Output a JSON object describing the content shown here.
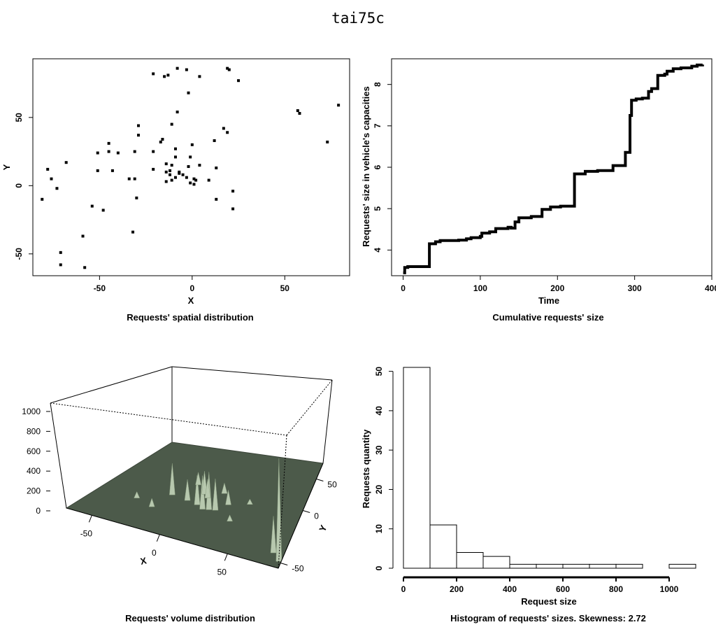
{
  "page_title": "tai75c",
  "chart_data": [
    {
      "type": "scatter",
      "caption": "Requests' spatial distribution",
      "xlabel": "X",
      "ylabel": "Y",
      "xlim": [
        -86,
        85
      ],
      "ylim": [
        -66,
        93
      ],
      "xticks": [
        -50,
        0,
        50
      ],
      "yticks": [
        -50,
        0,
        50
      ],
      "points": [
        [
          -21,
          82
        ],
        [
          -15,
          80
        ],
        [
          -13,
          81
        ],
        [
          -8,
          86
        ],
        [
          -3,
          85
        ],
        [
          4,
          80
        ],
        [
          19,
          86
        ],
        [
          20,
          85
        ],
        [
          25,
          77
        ],
        [
          -2,
          68
        ],
        [
          -8,
          54
        ],
        [
          57,
          55
        ],
        [
          58,
          53
        ],
        [
          79,
          59
        ],
        [
          73,
          32
        ],
        [
          -29,
          44
        ],
        [
          -11,
          45
        ],
        [
          -29,
          37
        ],
        [
          -16,
          34
        ],
        [
          -17,
          32
        ],
        [
          17,
          42
        ],
        [
          19,
          39
        ],
        [
          12,
          33
        ],
        [
          -45,
          31
        ],
        [
          -31,
          25
        ],
        [
          -21,
          25
        ],
        [
          -45,
          25
        ],
        [
          -51,
          24
        ],
        [
          -40,
          24
        ],
        [
          -9,
          27
        ],
        [
          0,
          30
        ],
        [
          -68,
          17
        ],
        [
          -78,
          12
        ],
        [
          -51,
          11
        ],
        [
          -43,
          11
        ],
        [
          -21,
          12
        ],
        [
          -14,
          16
        ],
        [
          -11,
          15
        ],
        [
          -12,
          11
        ],
        [
          -14,
          10
        ],
        [
          -9,
          21
        ],
        [
          -1,
          21
        ],
        [
          4,
          15
        ],
        [
          13,
          13
        ],
        [
          -12,
          8
        ],
        [
          -9,
          6
        ],
        [
          -7,
          9
        ],
        [
          -5,
          8
        ],
        [
          -3,
          6
        ],
        [
          -2,
          14
        ],
        [
          -7,
          10
        ],
        [
          -76,
          5
        ],
        [
          -34,
          5
        ],
        [
          -31,
          5
        ],
        [
          -14,
          3
        ],
        [
          -11,
          4
        ],
        [
          -1,
          2
        ],
        [
          1,
          1
        ],
        [
          2,
          4
        ],
        [
          1,
          5
        ],
        [
          9,
          4
        ],
        [
          22,
          -4
        ],
        [
          -73,
          -2
        ],
        [
          -81,
          -10
        ],
        [
          -30,
          -9
        ],
        [
          13,
          -10
        ],
        [
          -54,
          -15
        ],
        [
          -48,
          -18
        ],
        [
          22,
          -17
        ],
        [
          -59,
          -37
        ],
        [
          -32,
          -34
        ],
        [
          -71,
          -49
        ],
        [
          -71,
          -58
        ],
        [
          -58,
          -60
        ]
      ]
    },
    {
      "type": "line",
      "caption": "Cumulative requests' size",
      "xlabel": "Time",
      "ylabel": "Requests' size in vehicle's capacities",
      "xlim": [
        -15,
        400
      ],
      "ylim": [
        3.38,
        8.62
      ],
      "xticks": [
        0,
        100,
        200,
        300,
        400
      ],
      "yticks": [
        4,
        5,
        6,
        7,
        8
      ],
      "steps": [
        [
          0,
          3.45
        ],
        [
          2,
          3.58
        ],
        [
          6,
          3.6
        ],
        [
          34,
          3.62
        ],
        [
          34,
          4.15
        ],
        [
          42,
          4.2
        ],
        [
          48,
          4.23
        ],
        [
          72,
          4.24
        ],
        [
          82,
          4.27
        ],
        [
          88,
          4.3
        ],
        [
          100,
          4.33
        ],
        [
          102,
          4.41
        ],
        [
          112,
          4.44
        ],
        [
          120,
          4.52
        ],
        [
          136,
          4.55
        ],
        [
          140,
          4.53
        ],
        [
          145,
          4.68
        ],
        [
          150,
          4.78
        ],
        [
          166,
          4.81
        ],
        [
          180,
          4.82
        ],
        [
          180,
          4.98
        ],
        [
          191,
          5.04
        ],
        [
          204,
          5.06
        ],
        [
          222,
          5.07
        ],
        [
          222,
          5.84
        ],
        [
          236,
          5.9
        ],
        [
          252,
          5.92
        ],
        [
          272,
          6.04
        ],
        [
          288,
          6.05
        ],
        [
          288,
          6.36
        ],
        [
          294,
          6.38
        ],
        [
          294,
          7.25
        ],
        [
          296,
          7.62
        ],
        [
          302,
          7.65
        ],
        [
          310,
          7.67
        ],
        [
          318,
          7.83
        ],
        [
          322,
          7.9
        ],
        [
          330,
          7.95
        ],
        [
          330,
          8.22
        ],
        [
          339,
          8.25
        ],
        [
          342,
          8.32
        ],
        [
          350,
          8.38
        ],
        [
          360,
          8.4
        ],
        [
          374,
          8.44
        ],
        [
          381,
          8.47
        ],
        [
          388,
          8.48
        ]
      ]
    },
    {
      "type": "surface",
      "caption": "Requests' volume distribution",
      "xlabel": "X",
      "ylabel": "Y",
      "zticks": [
        0,
        200,
        400,
        600,
        800,
        1000
      ],
      "xticks": [
        -50,
        0,
        50
      ],
      "yticks": [
        -50,
        0,
        50
      ],
      "colors": {
        "surface": "#4c5a4a",
        "spike": "#b7c8ae"
      },
      "peaks": [
        [
          0.33,
          0.42,
          0.3
        ],
        [
          0.42,
          0.4,
          0.2
        ],
        [
          0.48,
          0.38,
          0.28
        ],
        [
          0.52,
          0.35,
          0.32
        ],
        [
          0.55,
          0.36,
          0.36
        ],
        [
          0.58,
          0.37,
          0.3
        ],
        [
          0.47,
          0.5,
          0.22
        ],
        [
          0.5,
          0.47,
          0.18
        ],
        [
          0.62,
          0.45,
          0.14
        ],
        [
          0.3,
          0.25,
          0.08
        ],
        [
          0.2,
          0.3,
          0.06
        ],
        [
          0.4,
          0.58,
          0.12
        ],
        [
          0.56,
          0.55,
          0.1
        ],
        [
          0.68,
          0.3,
          0.06
        ],
        [
          0.72,
          0.5,
          0.05
        ],
        [
          0.99,
          0.06,
          0.98
        ],
        [
          0.95,
          0.12,
          0.35
        ]
      ]
    },
    {
      "type": "bar",
      "caption": "Histogram of requests' sizes. Skewness: 2.72",
      "xlabel": "Request size",
      "ylabel": "Requests quantity",
      "bins": [
        [
          0,
          100
        ],
        [
          100,
          200
        ],
        [
          200,
          300
        ],
        [
          300,
          400
        ],
        [
          400,
          500
        ],
        [
          500,
          600
        ],
        [
          600,
          700
        ],
        [
          700,
          800
        ],
        [
          800,
          900
        ],
        [
          900,
          1000
        ],
        [
          1000,
          1100
        ]
      ],
      "values": [
        51,
        11,
        4,
        3,
        1,
        1,
        1,
        1,
        1,
        0,
        1
      ],
      "xticks": [
        0,
        200,
        400,
        600,
        800,
        1000
      ],
      "yticks": [
        0,
        10,
        20,
        30,
        40,
        50
      ],
      "xlim": [
        0,
        1100
      ],
      "ylim": [
        0,
        51
      ]
    }
  ]
}
